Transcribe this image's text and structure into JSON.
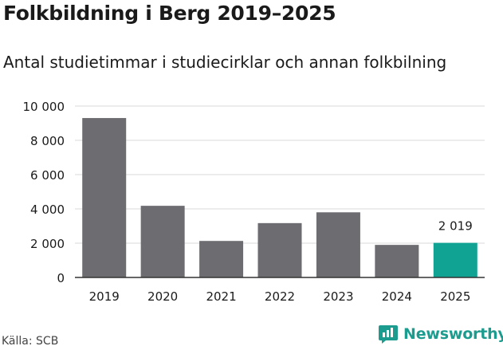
{
  "title": "Folkbildning i Berg 2019–2025",
  "subtitle": "Antal studietimmar i studiecirklar och annan folkbilning",
  "source": "Källa: SCB",
  "brand": {
    "name": "Newsworthy",
    "icon": "newsworthy-logo-icon",
    "color": "#1b9c8e"
  },
  "chart_data": {
    "type": "bar",
    "categories": [
      "2019",
      "2020",
      "2021",
      "2022",
      "2023",
      "2024",
      "2025"
    ],
    "values": [
      9300,
      4180,
      2130,
      3170,
      3800,
      1900,
      2019
    ],
    "ylim": [
      0,
      10000
    ],
    "yticks": [
      0,
      2000,
      4000,
      6000,
      8000,
      10000
    ],
    "ytick_labels": [
      "0",
      "2 000",
      "4 000",
      "6 000",
      "8 000",
      "10 000"
    ],
    "grid": true,
    "colors": {
      "default": "#6d6c71",
      "highlight": "#10a393"
    },
    "highlight_index": 6,
    "data_labels": [
      {
        "index": 6,
        "text": "2 019"
      }
    ]
  }
}
